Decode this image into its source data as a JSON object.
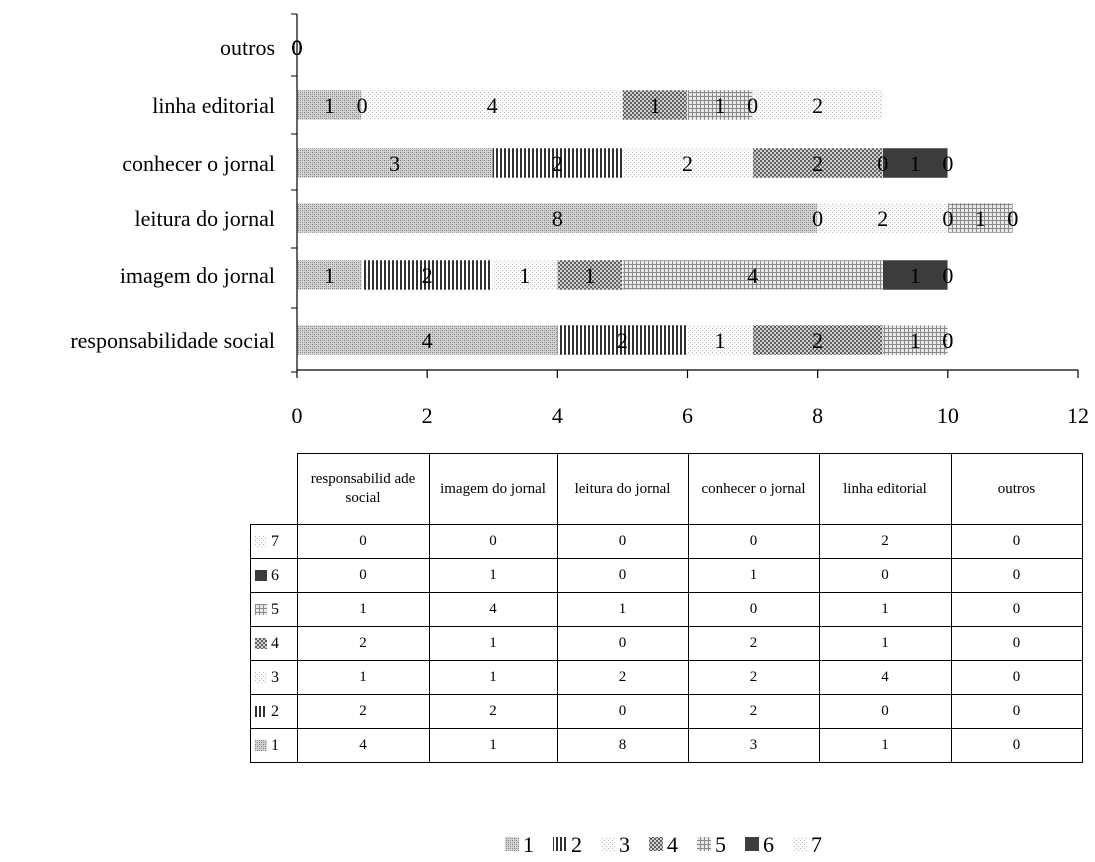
{
  "chart_data": {
    "type": "bar",
    "orientation": "horizontal",
    "stacked": true,
    "categories": [
      "responsabilidade social",
      "imagem do jornal",
      "leitura do jornal",
      "conhecer o jornal",
      "linha editorial",
      "outros"
    ],
    "table_headers": [
      "responsabilid ade social",
      "imagem do jornal",
      "leitura do jornal",
      "conhecer o jornal",
      "linha editorial",
      "outros"
    ],
    "series": [
      {
        "name": "1",
        "values": [
          4,
          1,
          8,
          3,
          1,
          0
        ],
        "color": "#b0b0b0",
        "pattern": "dots-dense"
      },
      {
        "name": "2",
        "values": [
          2,
          2,
          0,
          2,
          0,
          0
        ],
        "color": "#909090",
        "pattern": "vertical-lines"
      },
      {
        "name": "3",
        "values": [
          1,
          1,
          2,
          2,
          4,
          0
        ],
        "color": "#e6e6e6",
        "pattern": "dots-light"
      },
      {
        "name": "4",
        "values": [
          2,
          1,
          0,
          2,
          1,
          0
        ],
        "color": "#a0a0a0",
        "pattern": "checker"
      },
      {
        "name": "5",
        "values": [
          1,
          4,
          1,
          0,
          1,
          0
        ],
        "color": "#c4c4c4",
        "pattern": "grid"
      },
      {
        "name": "6",
        "values": [
          0,
          1,
          0,
          1,
          0,
          0
        ],
        "color": "#3c3c3c",
        "pattern": "solid"
      },
      {
        "name": "7",
        "values": [
          0,
          0,
          0,
          0,
          2,
          0
        ],
        "color": "#dedede",
        "pattern": "dots-light-2"
      }
    ],
    "xlim": [
      0,
      12
    ],
    "xticks": [
      0,
      2,
      4,
      6,
      8,
      10,
      12
    ],
    "legend_position": "bottom",
    "data_table": true,
    "grid": false
  }
}
